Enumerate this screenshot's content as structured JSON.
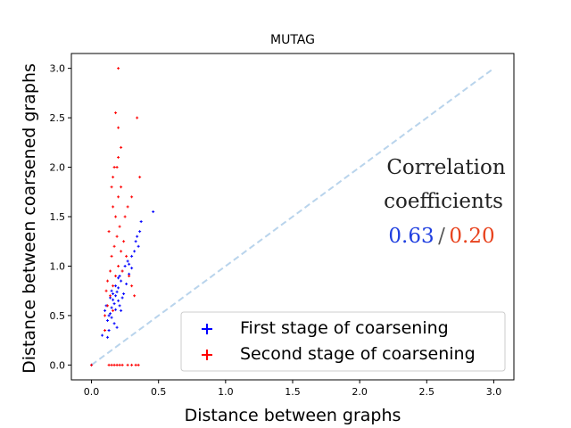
{
  "chart_data": {
    "type": "scatter",
    "title": "MUTAG",
    "xlabel": "Distance between graphs",
    "ylabel": "Distance between coarsened graphs",
    "xlim": [
      -0.15,
      3.15
    ],
    "ylim": [
      -0.15,
      3.15
    ],
    "xticks": [
      0.0,
      0.5,
      1.0,
      1.5,
      2.0,
      2.5,
      3.0
    ],
    "yticks": [
      0.0,
      0.5,
      1.0,
      1.5,
      2.0,
      2.5,
      3.0
    ],
    "tick_labels": [
      "0.0",
      "0.5",
      "1.0",
      "1.5",
      "2.0",
      "2.5",
      "3.0"
    ],
    "grid": false,
    "reference_line": {
      "name": "identity",
      "style": "dashed",
      "color": "#b9d4ec",
      "x": [
        0,
        3
      ],
      "y": [
        0,
        3
      ]
    },
    "series": [
      {
        "name": "First stage of coarsening",
        "color": "#0000ff",
        "marker": "+",
        "points": [
          [
            0.0,
            0.0
          ],
          [
            0.12,
            0.45
          ],
          [
            0.14,
            0.52
          ],
          [
            0.15,
            0.58
          ],
          [
            0.17,
            0.62
          ],
          [
            0.18,
            0.7
          ],
          [
            0.2,
            0.78
          ],
          [
            0.22,
            0.85
          ],
          [
            0.16,
            0.66
          ],
          [
            0.13,
            0.5
          ],
          [
            0.19,
            0.74
          ],
          [
            0.21,
            0.9
          ],
          [
            0.23,
            0.95
          ],
          [
            0.25,
            1.0
          ],
          [
            0.27,
            1.05
          ],
          [
            0.3,
            1.1
          ],
          [
            0.32,
            1.15
          ],
          [
            0.35,
            1.2
          ],
          [
            0.36,
            1.35
          ],
          [
            0.37,
            1.45
          ],
          [
            0.1,
            0.55
          ],
          [
            0.11,
            0.6
          ],
          [
            0.14,
            0.68
          ],
          [
            0.16,
            0.72
          ],
          [
            0.18,
            0.8
          ],
          [
            0.2,
            0.65
          ],
          [
            0.22,
            0.55
          ],
          [
            0.15,
            0.48
          ],
          [
            0.17,
            0.42
          ],
          [
            0.19,
            0.38
          ],
          [
            0.13,
            0.35
          ],
          [
            0.24,
            0.72
          ],
          [
            0.26,
            0.82
          ],
          [
            0.28,
            0.92
          ],
          [
            0.3,
            0.98
          ],
          [
            0.08,
            0.3
          ],
          [
            0.12,
            0.28
          ],
          [
            0.18,
            0.56
          ],
          [
            0.21,
            0.6
          ],
          [
            0.23,
            0.68
          ],
          [
            0.33,
            1.25
          ],
          [
            0.34,
            1.3
          ],
          [
            0.28,
            1.02
          ],
          [
            0.2,
            0.88
          ],
          [
            0.15,
            0.75
          ],
          [
            0.46,
            1.55
          ]
        ]
      },
      {
        "name": "Second stage of coarsening",
        "color": "#ff0000",
        "marker": "+",
        "points": [
          [
            0.0,
            0.0
          ],
          [
            0.13,
            0.0
          ],
          [
            0.15,
            0.0
          ],
          [
            0.17,
            0.0
          ],
          [
            0.19,
            0.0
          ],
          [
            0.21,
            0.0
          ],
          [
            0.23,
            0.0
          ],
          [
            0.27,
            0.0
          ],
          [
            0.3,
            0.0
          ],
          [
            0.33,
            0.0
          ],
          [
            0.35,
            0.0
          ],
          [
            0.1,
            0.5
          ],
          [
            0.12,
            0.6
          ],
          [
            0.14,
            0.7
          ],
          [
            0.16,
            0.8
          ],
          [
            0.18,
            0.9
          ],
          [
            0.2,
            1.0
          ],
          [
            0.15,
            1.1
          ],
          [
            0.17,
            1.2
          ],
          [
            0.19,
            1.3
          ],
          [
            0.21,
            1.4
          ],
          [
            0.18,
            1.5
          ],
          [
            0.16,
            1.6
          ],
          [
            0.2,
            1.7
          ],
          [
            0.15,
            1.8
          ],
          [
            0.22,
            1.8
          ],
          [
            0.17,
            2.0
          ],
          [
            0.19,
            2.0
          ],
          [
            0.22,
            2.2
          ],
          [
            0.2,
            2.4
          ],
          [
            0.18,
            2.55
          ],
          [
            0.34,
            2.5
          ],
          [
            0.2,
            3.0
          ],
          [
            0.12,
            0.85
          ],
          [
            0.14,
            0.95
          ],
          [
            0.22,
            1.15
          ],
          [
            0.24,
            1.25
          ],
          [
            0.26,
            1.1
          ],
          [
            0.28,
            0.9
          ],
          [
            0.3,
            0.8
          ],
          [
            0.32,
            0.7
          ],
          [
            0.1,
            0.35
          ],
          [
            0.13,
            1.35
          ],
          [
            0.25,
            1.5
          ],
          [
            0.27,
            1.6
          ],
          [
            0.3,
            1.7
          ],
          [
            0.36,
            1.9
          ],
          [
            0.11,
            0.75
          ],
          [
            0.16,
            0.55
          ],
          [
            0.23,
            0.95
          ],
          [
            0.2,
            2.1
          ],
          [
            0.16,
            1.9
          ]
        ]
      }
    ],
    "annotation": {
      "lines": [
        "Correlation",
        "coefficients"
      ],
      "value_first": "0.63",
      "separator": "/",
      "value_second": "0.20",
      "color_first": "#1f3fe0",
      "color_second": "#e8431e"
    },
    "legend_position": "lower-right"
  }
}
